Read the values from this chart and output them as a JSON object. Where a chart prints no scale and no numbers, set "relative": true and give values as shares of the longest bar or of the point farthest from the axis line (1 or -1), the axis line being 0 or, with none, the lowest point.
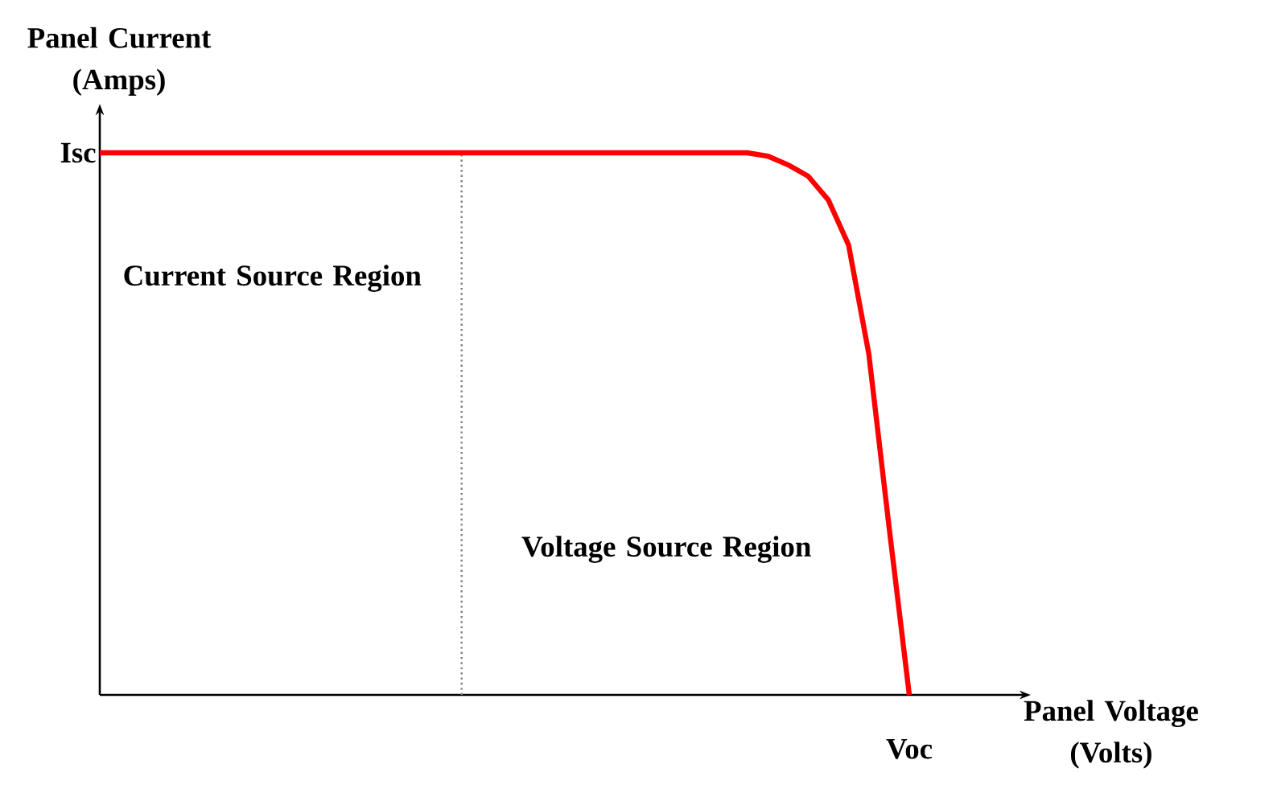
{
  "chart_data": {
    "type": "line",
    "relative": true,
    "xlabel": "Panel Voltage (Volts)",
    "ylabel": "Panel Current (Amps)",
    "categories": [
      null,
      null,
      null,
      null,
      null,
      null,
      null,
      null,
      null,
      null,
      null,
      null,
      null,
      null,
      null,
      null,
      null,
      null,
      null,
      null,
      null,
      null,
      null,
      null,
      null,
      null,
      null,
      null,
      null,
      null,
      null,
      null,
      null,
      null,
      null,
      null,
      null,
      null,
      null,
      null,
      null
    ],
    "series": [
      {
        "color": "#ff0000",
        "values": [
          1,
          1,
          1,
          1,
          1,
          1,
          1,
          1,
          1,
          1,
          1,
          1,
          1,
          1,
          1,
          1,
          1,
          1,
          1,
          1,
          1,
          1,
          1,
          1,
          1,
          1,
          1,
          1,
          1,
          1,
          1,
          1,
          1,
          0.994,
          0.978,
          0.957,
          0.913,
          0.83,
          0.629,
          0.31,
          0
        ]
      }
    ],
    "marker": "none",
    "line_style": "solid",
    "annotations": [
      "Isc",
      "Voc",
      "Current Source Region",
      "Voltage Source Region"
    ]
  }
}
